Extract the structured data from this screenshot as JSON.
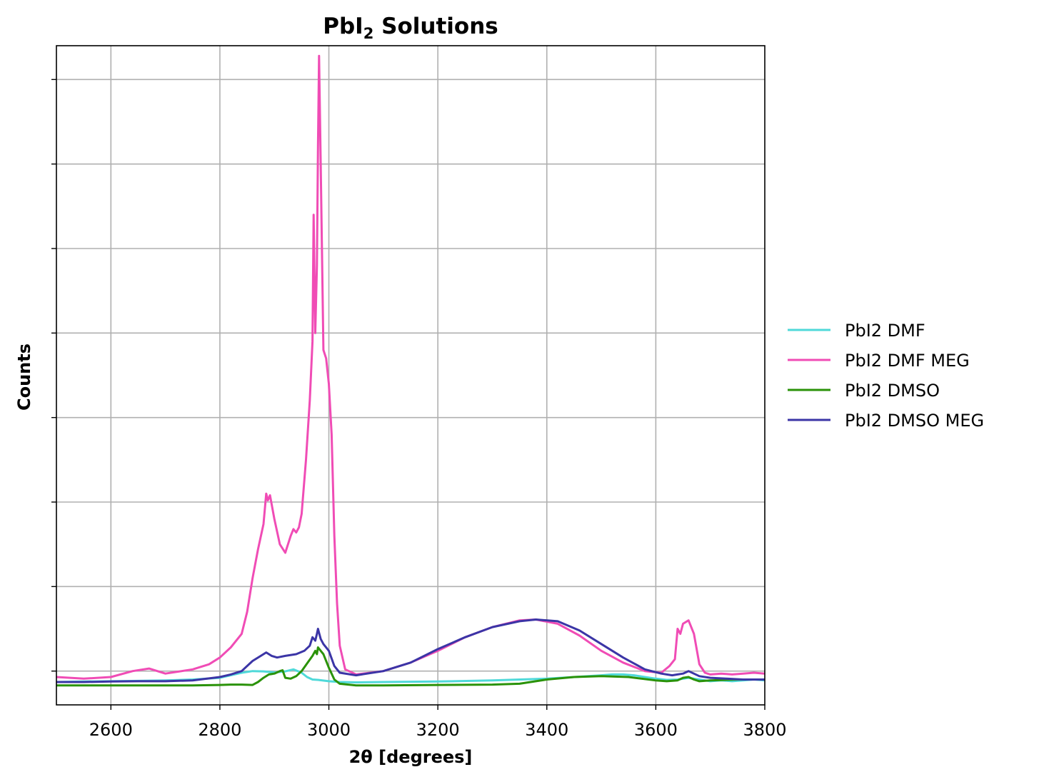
{
  "chart_data": {
    "type": "line",
    "title": "PbI",
    "title_subscript": "2",
    "title_rest": " Solutions",
    "xlabel": "2θ [degrees]",
    "ylabel": "Counts",
    "xlim": [
      2500,
      3800
    ],
    "ylim": [
      0,
      3900
    ],
    "x_ticks": [
      2600,
      2800,
      3000,
      3200,
      3400,
      3600,
      3800
    ],
    "y_ticks": [
      200,
      700,
      1200,
      1700,
      2200,
      2700,
      3200,
      3700
    ],
    "y_tick_labels_shown": false,
    "grid": true,
    "legend_position": "outside-right",
    "series": [
      {
        "name": "PbI2 DMF",
        "color": "#4fd9d9",
        "x": [
          2500,
          2550,
          2600,
          2650,
          2700,
          2750,
          2800,
          2820,
          2840,
          2860,
          2880,
          2900,
          2920,
          2935,
          2950,
          2960,
          2970,
          2980,
          3000,
          3020,
          3050,
          3100,
          3200,
          3300,
          3400,
          3450,
          3500,
          3520,
          3540,
          3560,
          3580,
          3600,
          3620,
          3640,
          3660,
          3680,
          3700,
          3720,
          3740,
          3760,
          3780,
          3800
        ],
        "values": [
          135,
          138,
          140,
          142,
          145,
          150,
          160,
          175,
          190,
          200,
          198,
          192,
          198,
          210,
          190,
          165,
          150,
          148,
          140,
          135,
          133,
          135,
          138,
          145,
          155,
          165,
          175,
          180,
          180,
          175,
          165,
          155,
          148,
          150,
          160,
          150,
          140,
          145,
          140,
          145,
          150,
          145
        ]
      },
      {
        "name": "PbI2 DMF MEG",
        "color": "#f04cb5",
        "x": [
          2500,
          2550,
          2600,
          2640,
          2670,
          2700,
          2750,
          2780,
          2800,
          2820,
          2840,
          2850,
          2860,
          2870,
          2880,
          2885,
          2888,
          2892,
          2900,
          2910,
          2920,
          2930,
          2935,
          2940,
          2945,
          2950,
          2958,
          2965,
          2970,
          2972,
          2975,
          2978,
          2980,
          2982,
          2985,
          2990,
          2995,
          3000,
          3005,
          3010,
          3015,
          3020,
          3030,
          3050,
          3100,
          3150,
          3200,
          3250,
          3300,
          3350,
          3380,
          3420,
          3460,
          3500,
          3540,
          3580,
          3610,
          3625,
          3635,
          3640,
          3645,
          3650,
          3660,
          3670,
          3680,
          3690,
          3700,
          3720,
          3740,
          3760,
          3780,
          3800
        ],
        "values": [
          165,
          155,
          165,
          200,
          215,
          185,
          210,
          240,
          280,
          340,
          420,
          550,
          750,
          920,
          1070,
          1250,
          1210,
          1240,
          1100,
          950,
          900,
          1000,
          1040,
          1020,
          1050,
          1130,
          1450,
          1800,
          2150,
          2900,
          2200,
          2600,
          3300,
          3840,
          3200,
          2100,
          2050,
          1900,
          1600,
          1000,
          600,
          350,
          210,
          180,
          200,
          250,
          320,
          400,
          460,
          500,
          505,
          480,
          410,
          320,
          250,
          200,
          190,
          230,
          270,
          450,
          420,
          480,
          500,
          420,
          240,
          190,
          180,
          185,
          180,
          185,
          190,
          185
        ]
      },
      {
        "name": "PbI2 DMSO",
        "color": "#2a9208",
        "x": [
          2500,
          2550,
          2600,
          2650,
          2700,
          2750,
          2800,
          2820,
          2840,
          2860,
          2870,
          2880,
          2890,
          2900,
          2910,
          2915,
          2920,
          2930,
          2940,
          2950,
          2960,
          2970,
          2975,
          2978,
          2980,
          2985,
          2990,
          3000,
          3010,
          3020,
          3050,
          3100,
          3200,
          3300,
          3350,
          3400,
          3450,
          3500,
          3550,
          3600,
          3620,
          3640,
          3650,
          3660,
          3670,
          3680,
          3700,
          3750,
          3800
        ],
        "values": [
          115,
          115,
          115,
          115,
          115,
          115,
          118,
          120,
          120,
          118,
          135,
          160,
          180,
          185,
          200,
          205,
          160,
          155,
          170,
          200,
          245,
          290,
          320,
          300,
          340,
          320,
          300,
          220,
          150,
          125,
          115,
          115,
          118,
          120,
          125,
          150,
          165,
          170,
          165,
          145,
          140,
          145,
          160,
          165,
          150,
          140,
          145,
          150,
          150
        ]
      },
      {
        "name": "PbI2 DMSO MEG",
        "color": "#3b35a6",
        "x": [
          2500,
          2550,
          2600,
          2650,
          2700,
          2750,
          2800,
          2820,
          2840,
          2860,
          2875,
          2885,
          2895,
          2905,
          2920,
          2940,
          2955,
          2965,
          2970,
          2975,
          2978,
          2980,
          2985,
          2990,
          3000,
          3010,
          3020,
          3050,
          3100,
          3150,
          3200,
          3250,
          3300,
          3350,
          3380,
          3420,
          3460,
          3500,
          3540,
          3580,
          3610,
          3630,
          3640,
          3650,
          3660,
          3680,
          3700,
          3730,
          3760,
          3800
        ],
        "values": [
          135,
          135,
          138,
          140,
          140,
          145,
          165,
          180,
          200,
          260,
          290,
          310,
          290,
          280,
          290,
          300,
          320,
          350,
          400,
          380,
          420,
          450,
          390,
          360,
          320,
          230,
          190,
          175,
          200,
          250,
          330,
          400,
          460,
          495,
          505,
          495,
          440,
          360,
          280,
          210,
          185,
          175,
          180,
          185,
          200,
          170,
          160,
          155,
          150,
          150
        ]
      }
    ]
  }
}
